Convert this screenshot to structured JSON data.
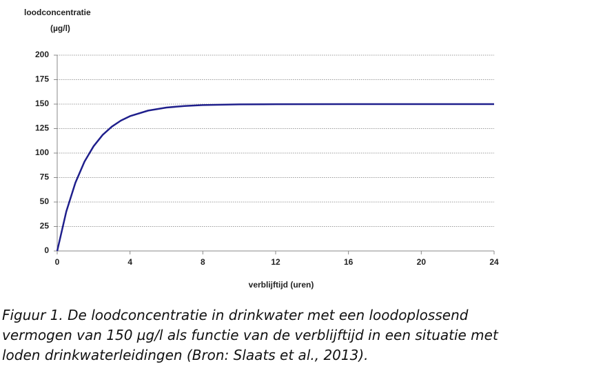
{
  "chart_data": {
    "type": "line",
    "ylabel": "loodconcentratie",
    "yunit": "(µg/l)",
    "xlabel": "verblijftijd (uren)",
    "x": [
      0,
      0.5,
      1,
      1.5,
      2,
      2.5,
      3,
      3.5,
      4,
      5,
      6,
      7,
      8,
      10,
      12,
      16,
      20,
      24
    ],
    "series": [
      {
        "color": "#1f1f8c",
        "values": [
          0,
          40.3,
          69.7,
          91.3,
          107.0,
          118.6,
          127.0,
          133.2,
          137.7,
          143.4,
          146.5,
          148.1,
          149.0,
          149.7,
          149.9,
          150,
          150,
          150
        ]
      }
    ],
    "xlim": [
      0,
      24
    ],
    "xticks": [
      0,
      4,
      8,
      12,
      16,
      20,
      24
    ],
    "ylim": [
      0,
      200
    ],
    "yticks": [
      0,
      25,
      50,
      75,
      100,
      125,
      150,
      175,
      200
    ],
    "grid": true
  },
  "caption": [
    "Figuur 1. De loodconcentratie in drinkwater met een loodoplossend",
    "vermogen van 150 µg/l als functie van de verblijftijd in een situatie met",
    "loden drinkwaterleidingen (Bron: Slaats et al., 2013)."
  ]
}
